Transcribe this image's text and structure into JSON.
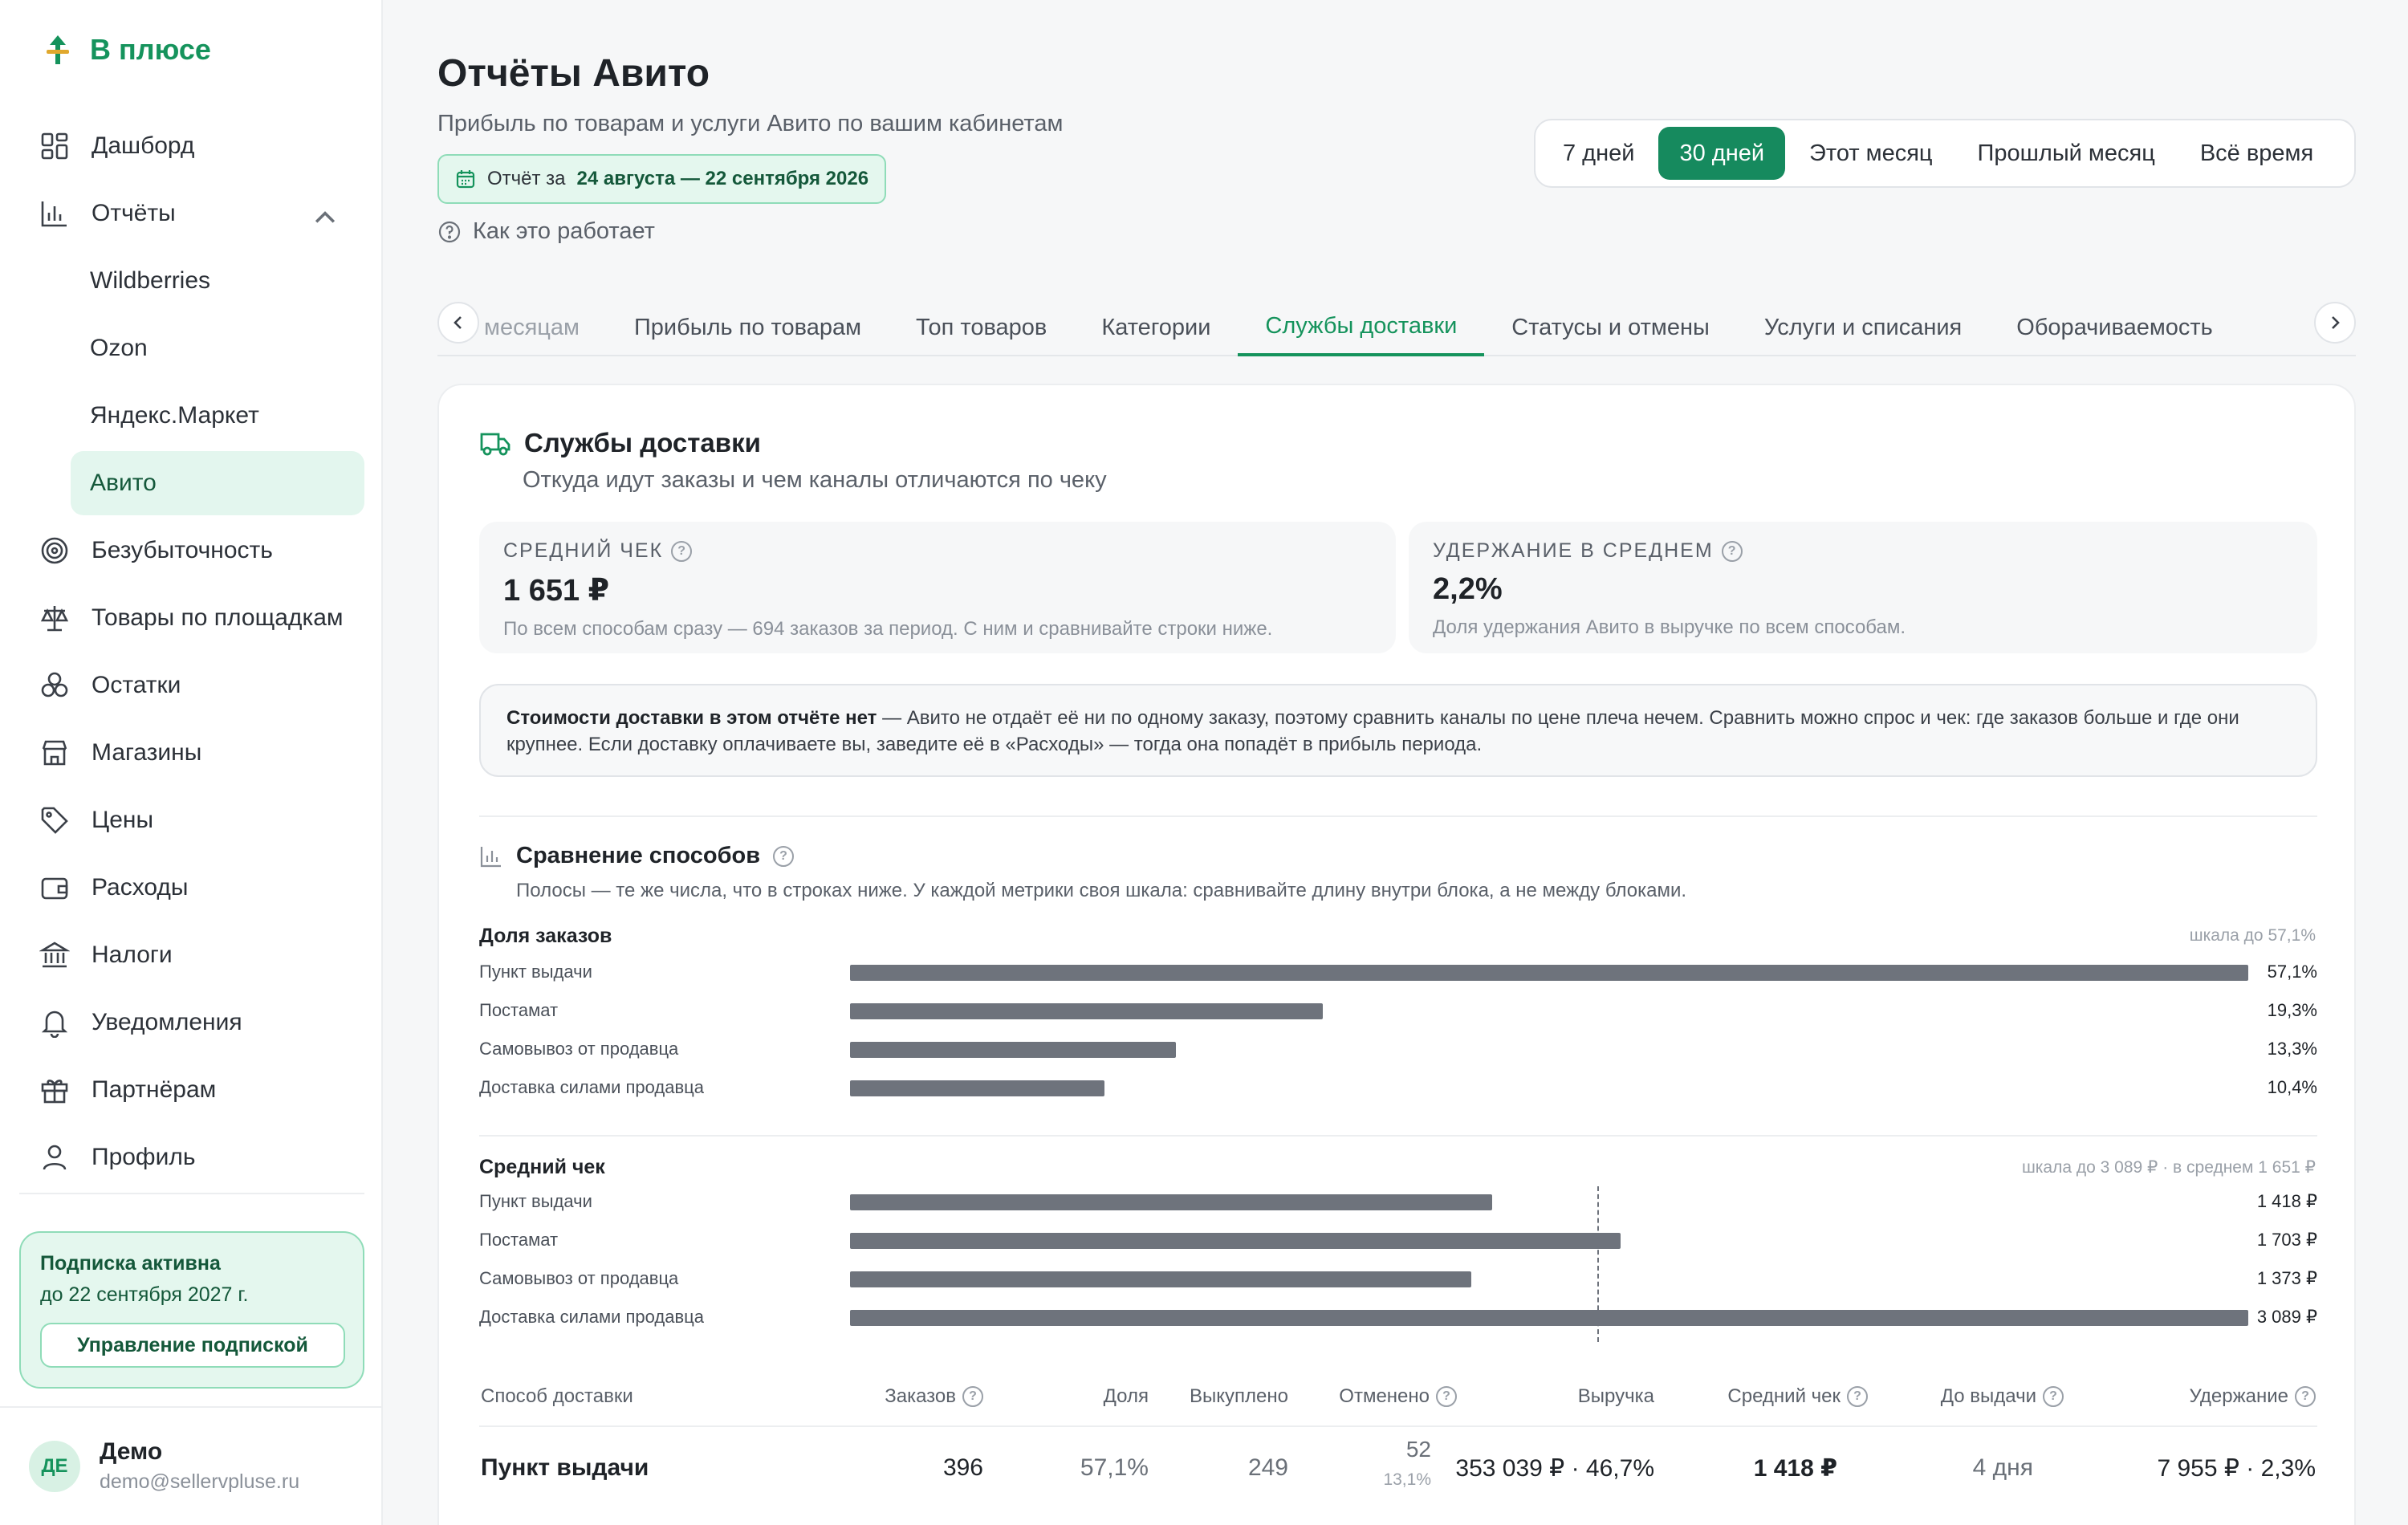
{
  "app": {
    "brand": "В плюсе",
    "nav": [
      {
        "label": "Дашборд",
        "icon": "dashboard-icon"
      },
      {
        "label": "Отчёты",
        "icon": "bar-chart-icon"
      },
      {
        "label": "Wildberries",
        "sub": true
      },
      {
        "label": "Ozon",
        "sub": true
      },
      {
        "label": "Яндекс.Маркет",
        "sub": true
      },
      {
        "label": "Авито",
        "sub": true,
        "active": true
      },
      {
        "label": "Безубыточность",
        "icon": "target-icon"
      },
      {
        "label": "Товары по площадкам",
        "icon": "scales-icon"
      },
      {
        "label": "Остатки",
        "icon": "boxes-icon"
      },
      {
        "label": "Магазины",
        "icon": "store-icon"
      },
      {
        "label": "Цены",
        "icon": "tag-icon"
      },
      {
        "label": "Расходы",
        "icon": "wallet-icon"
      },
      {
        "label": "Налоги",
        "icon": "bank-icon"
      },
      {
        "label": "Уведомления",
        "icon": "bell-icon"
      },
      {
        "label": "Партнёрам",
        "icon": "gift-icon"
      },
      {
        "label": "Профиль",
        "icon": "user-icon"
      }
    ],
    "subscription": {
      "title": "Подписка активна",
      "until": "до 22 сентября 2027 г.",
      "button": "Управление подпиской"
    },
    "user": {
      "initials": "ДЕ",
      "name": "Демо",
      "email": "demo@sellervpluse.ru"
    }
  },
  "page": {
    "title": "Отчёты Авито",
    "subtitle": "Прибыль по товарам и услуги Авито по вашим кабинетам",
    "period_prefix": "Отчёт за",
    "period_range": "24 августа — 22 сентября 2026",
    "how_it_works": "Как это работает",
    "periods": [
      "7 дней",
      "30 дней",
      "Этот месяц",
      "Прошлый месяц",
      "Всё время"
    ],
    "active_period": 1,
    "tabs": [
      "месяцам",
      "Прибыль по товарам",
      "Топ товаров",
      "Категории",
      "Службы доставки",
      "Статусы и отмены",
      "Услуги и списания",
      "Оборачиваемость"
    ],
    "active_tab": 4
  },
  "section": {
    "title": "Службы доставки",
    "subtitle": "Откуда идут заказы и чем каналы отличаются по чеку",
    "stats": [
      {
        "label": "СРЕДНИЙ ЧЕК",
        "value": "1 651 ₽",
        "note": "По всем способам сразу — 694 заказов за период. С ним и сравнивайте строки ниже."
      },
      {
        "label": "УДЕРЖАНИЕ В СРЕДНЕМ",
        "value": "2,2%",
        "note": "Доля удержания Авито в выручке по всем способам."
      }
    ],
    "notice_bold": "Стоимости доставки в этом отчёте нет",
    "notice_text": " — Авито не отдаёт её ни по одному заказу, поэтому сравнить каналы по цене плеча нечем. Сравнить можно спрос и чек: где заказов больше и где они крупнее. Если доставку оплачиваете вы, заведите её в «Расходы» — тогда она попадёт в прибыль периода."
  },
  "comparison": {
    "title": "Сравнение способов",
    "subtitle": "Полосы — те же числа, что в строках ниже. У каждой метрики своя шкала: сравнивайте длину внутри блока, а не между блоками.",
    "share_block": {
      "title": "Доля заказов",
      "scale": "шкала до 57,1%",
      "max": 57.1,
      "rows": [
        {
          "label": "Пункт выдачи",
          "value": 57.1,
          "text": "57,1%"
        },
        {
          "label": "Постамат",
          "value": 19.3,
          "text": "19,3%"
        },
        {
          "label": "Самовывоз от продавца",
          "value": 13.3,
          "text": "13,3%"
        },
        {
          "label": "Доставка силами продавца",
          "value": 10.4,
          "text": "10,4%"
        }
      ]
    },
    "check_block": {
      "title": "Средний чек",
      "scale": "шкала до 3 089 ₽ · в среднем 1 651 ₽",
      "max": 3089,
      "average": 1651,
      "rows": [
        {
          "label": "Пункт выдачи",
          "value": 1418,
          "text": "1 418 ₽"
        },
        {
          "label": "Постамат",
          "value": 1703,
          "text": "1 703 ₽"
        },
        {
          "label": "Самовывоз от продавца",
          "value": 1373,
          "text": "1 373 ₽"
        },
        {
          "label": "Доставка силами продавца",
          "value": 3089,
          "text": "3 089 ₽"
        }
      ]
    }
  },
  "table": {
    "headers": {
      "method": "Способ доставки",
      "orders": "Заказов",
      "share": "Доля",
      "bought": "Выкуплено",
      "cancelled": "Отменено",
      "revenue": "Выручка",
      "avg_check": "Средний чек",
      "to_delivery": "До выдачи",
      "retention": "Удержание"
    },
    "rows": [
      {
        "method": "Пункт выдачи",
        "orders": "396",
        "share": "57,1%",
        "bought": "249",
        "cancelled": "52",
        "cancelled_pct": "13,1%",
        "revenue": "353 039 ₽ · 46,7%",
        "avg_check": "1 418 ₽",
        "to_delivery": "4 дня",
        "retention": "7 955 ₽ · 2,3%"
      }
    ]
  },
  "colors": {
    "accent": "#15935c",
    "accent_dark": "#168a5e",
    "bar": "#6e737c",
    "mint_bg": "#e4f7ee"
  }
}
